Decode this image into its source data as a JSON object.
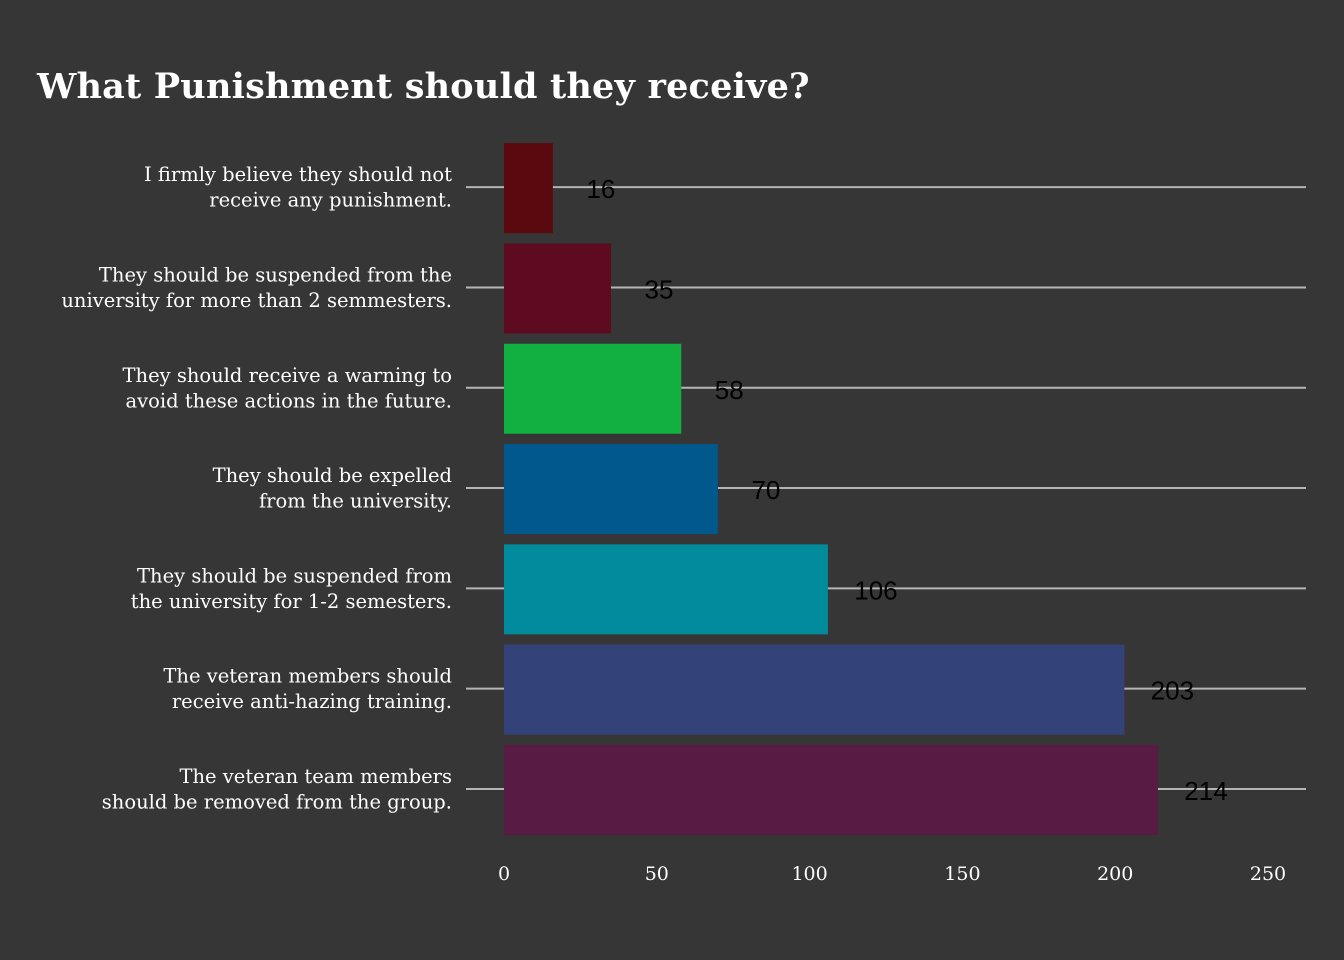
{
  "chart_data": {
    "type": "bar",
    "orientation": "horizontal",
    "title": "What Punishment should they receive?",
    "categories": [
      [
        "I firmly believe they should not",
        "receive any punishment."
      ],
      [
        "They should be suspended from the",
        "university for more than 2 semmesters."
      ],
      [
        "They should receive a warning to",
        "avoid these actions in the future."
      ],
      [
        "They should be expelled",
        "from the university."
      ],
      [
        "They should be suspended from",
        "the university for 1-2 semesters."
      ],
      [
        "The veteran members should",
        "receive anti-hazing training."
      ],
      [
        "The veteran team members",
        "should be removed from the group."
      ]
    ],
    "values": [
      16,
      35,
      58,
      70,
      106,
      203,
      214
    ],
    "colors": [
      "#5a0a0e",
      "#5e0a20",
      "#12b040",
      "#01588d",
      "#028b9c",
      "#34427a",
      "#581b44"
    ],
    "xlim": [
      0,
      250
    ],
    "xticks": [
      0,
      50,
      100,
      150,
      200,
      250
    ],
    "xlabel": "",
    "ylabel": "",
    "grid": true,
    "legend": "none",
    "background": "#363636",
    "label_color": "#ffffff",
    "value_label_color": "#000000"
  }
}
